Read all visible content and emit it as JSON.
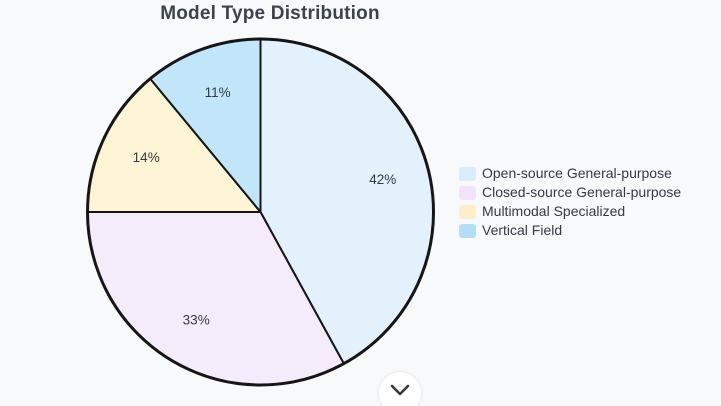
{
  "page": {
    "background": "#f8f9fb"
  },
  "chart_data": {
    "type": "pie",
    "title": "Model Type Distribution",
    "categories": [
      "Open-source General-purpose",
      "Closed-source General-purpose",
      "Multimodal Specialized",
      "Vertical Field"
    ],
    "values": [
      42,
      33,
      14,
      11
    ],
    "labels": [
      "42%",
      "33%",
      "14%",
      "11%"
    ],
    "slice_colors": [
      "#e2f1fc",
      "#f5ecfb",
      "#fdf4d6",
      "#c1e6f9"
    ],
    "legend_colors": [
      "#d9edfa",
      "#f0e4f8",
      "#faefc9",
      "#b2dff7"
    ],
    "stroke_color": "#161616",
    "label_color": "#333a40",
    "title_color": "#3c434b",
    "start_angle_deg": 0,
    "direction": "clockwise",
    "legend_position": "right",
    "grid": false
  },
  "scroll_button": {
    "icon": "chevron-down"
  }
}
